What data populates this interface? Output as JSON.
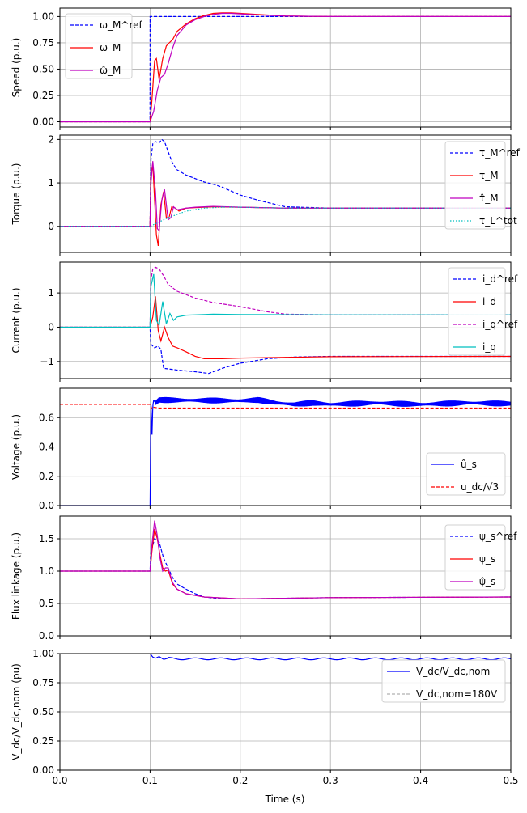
{
  "figure": {
    "xlabel": "Time (s)"
  },
  "chart_data": [
    {
      "type": "line",
      "ylabel": "Speed (p.u.)",
      "xlim": [
        0,
        0.5
      ],
      "ylim": [
        -0.05,
        1.08
      ],
      "yticks": [
        "0.00",
        "0.25",
        "0.50",
        "0.75",
        "1.00"
      ],
      "ytick_values": [
        0,
        0.25,
        0.5,
        0.75,
        1.0
      ],
      "grid": true,
      "legend": "top-left",
      "series": [
        {
          "name": "ω_M^ref",
          "color": "#0000ff",
          "dash": "dashed",
          "x": [
            0,
            0.0999,
            0.1,
            0.5
          ],
          "y": [
            0,
            0,
            1,
            1
          ]
        },
        {
          "name": "ω_M",
          "color": "#ff0000",
          "dash": "solid",
          "x": [
            0,
            0.1,
            0.102,
            0.105,
            0.107,
            0.11,
            0.114,
            0.118,
            0.12,
            0.125,
            0.13,
            0.14,
            0.15,
            0.16,
            0.17,
            0.18,
            0.19,
            0.2,
            0.22,
            0.25,
            0.3,
            0.5
          ],
          "y": [
            0,
            0,
            0.2,
            0.58,
            0.6,
            0.4,
            0.6,
            0.72,
            0.74,
            0.78,
            0.86,
            0.93,
            0.98,
            1.01,
            1.03,
            1.035,
            1.035,
            1.03,
            1.02,
            1.005,
            1.0,
            1.0
          ]
        },
        {
          "name": "ω̂_M",
          "color": "#bf00bf",
          "dash": "solid",
          "x": [
            0,
            0.1,
            0.104,
            0.108,
            0.112,
            0.116,
            0.12,
            0.125,
            0.13,
            0.14,
            0.15,
            0.16,
            0.17,
            0.18,
            0.19,
            0.2,
            0.22,
            0.25,
            0.3,
            0.5
          ],
          "y": [
            0,
            0,
            0.1,
            0.3,
            0.42,
            0.45,
            0.55,
            0.7,
            0.82,
            0.92,
            0.97,
            1.0,
            1.02,
            1.03,
            1.03,
            1.025,
            1.015,
            1.005,
            1.0,
            1.0
          ]
        }
      ]
    },
    {
      "type": "line",
      "ylabel": "Torque (p.u.)",
      "xlim": [
        0,
        0.5
      ],
      "ylim": [
        -0.6,
        2.1
      ],
      "yticks": [
        "0",
        "1",
        "2"
      ],
      "ytick_values": [
        0,
        1,
        2
      ],
      "grid": true,
      "legend": "right",
      "series": [
        {
          "name": "τ_M^ref",
          "color": "#0000ff",
          "dash": "dashed",
          "x": [
            0,
            0.0999,
            0.101,
            0.103,
            0.106,
            0.11,
            0.113,
            0.116,
            0.12,
            0.125,
            0.13,
            0.14,
            0.15,
            0.16,
            0.17,
            0.18,
            0.2,
            0.22,
            0.25,
            0.3,
            0.5
          ],
          "y": [
            0,
            0,
            1.55,
            1.9,
            1.95,
            1.92,
            2.0,
            1.95,
            1.72,
            1.45,
            1.3,
            1.18,
            1.1,
            1.02,
            0.97,
            0.9,
            0.72,
            0.6,
            0.45,
            0.42,
            0.42
          ]
        },
        {
          "name": "τ_M",
          "color": "#ff0000",
          "dash": "solid",
          "x": [
            0,
            0.0999,
            0.101,
            0.103,
            0.105,
            0.107,
            0.109,
            0.112,
            0.115,
            0.118,
            0.121,
            0.124,
            0.128,
            0.132,
            0.14,
            0.15,
            0.17,
            0.2,
            0.25,
            0.3,
            0.5
          ],
          "y": [
            0,
            0,
            1.2,
            1.45,
            0.6,
            -0.2,
            -0.45,
            0.5,
            0.8,
            0.2,
            0.2,
            0.45,
            0.42,
            0.35,
            0.42,
            0.43,
            0.45,
            0.44,
            0.42,
            0.42,
            0.42
          ]
        },
        {
          "name": "τ̂_M",
          "color": "#bf00bf",
          "dash": "solid",
          "x": [
            0,
            0.0999,
            0.101,
            0.103,
            0.106,
            0.108,
            0.11,
            0.113,
            0.116,
            0.12,
            0.123,
            0.126,
            0.13,
            0.14,
            0.15,
            0.17,
            0.2,
            0.25,
            0.3,
            0.5
          ],
          "y": [
            0,
            0,
            1.0,
            1.5,
            0.8,
            -0.05,
            -0.1,
            0.6,
            0.85,
            0.15,
            0.2,
            0.45,
            0.38,
            0.42,
            0.44,
            0.46,
            0.44,
            0.42,
            0.42,
            0.42
          ]
        },
        {
          "name": "τ_L^tot",
          "color": "#00bfbf",
          "dash": "dotted",
          "x": [
            0,
            0.1,
            0.12,
            0.14,
            0.16,
            0.18,
            0.2,
            0.25,
            0.3,
            0.5
          ],
          "y": [
            0,
            0,
            0.2,
            0.35,
            0.42,
            0.44,
            0.44,
            0.42,
            0.42,
            0.42
          ]
        }
      ]
    },
    {
      "type": "line",
      "ylabel": "Current (p.u.)",
      "xlim": [
        0,
        0.5
      ],
      "ylim": [
        -1.5,
        1.9
      ],
      "yticks": [
        "−1",
        "0",
        "1"
      ],
      "ytick_values": [
        -1,
        0,
        1
      ],
      "grid": true,
      "legend": "right",
      "series": [
        {
          "name": "i_d^ref",
          "color": "#0000ff",
          "dash": "dashed",
          "x": [
            0,
            0.0999,
            0.101,
            0.105,
            0.109,
            0.112,
            0.115,
            0.13,
            0.15,
            0.165,
            0.18,
            0.2,
            0.23,
            0.26,
            0.3,
            0.5
          ],
          "y": [
            0,
            0,
            -0.5,
            -0.6,
            -0.55,
            -0.65,
            -1.2,
            -1.25,
            -1.3,
            -1.35,
            -1.2,
            -1.05,
            -0.92,
            -0.87,
            -0.85,
            -0.85
          ]
        },
        {
          "name": "i_d",
          "color": "#ff0000",
          "dash": "solid",
          "x": [
            0,
            0.1,
            0.103,
            0.106,
            0.109,
            0.112,
            0.116,
            0.12,
            0.125,
            0.13,
            0.14,
            0.15,
            0.16,
            0.18,
            0.2,
            0.25,
            0.3,
            0.5
          ],
          "y": [
            0,
            0,
            0.3,
            0.9,
            -0.1,
            -0.4,
            0.0,
            -0.3,
            -0.55,
            -0.6,
            -0.72,
            -0.85,
            -0.92,
            -0.92,
            -0.9,
            -0.88,
            -0.86,
            -0.85
          ]
        },
        {
          "name": "i_q^ref",
          "color": "#bf00bf",
          "dash": "dashed",
          "x": [
            0,
            0.0999,
            0.101,
            0.103,
            0.106,
            0.11,
            0.115,
            0.12,
            0.13,
            0.14,
            0.15,
            0.17,
            0.2,
            0.23,
            0.25,
            0.3,
            0.5
          ],
          "y": [
            0,
            0,
            1.4,
            1.7,
            1.75,
            1.7,
            1.5,
            1.25,
            1.05,
            0.95,
            0.85,
            0.72,
            0.6,
            0.45,
            0.38,
            0.36,
            0.36
          ]
        },
        {
          "name": "i_q",
          "color": "#00bfbf",
          "dash": "solid",
          "x": [
            0,
            0.0999,
            0.101,
            0.104,
            0.107,
            0.11,
            0.114,
            0.118,
            0.122,
            0.126,
            0.13,
            0.14,
            0.15,
            0.17,
            0.2,
            0.3,
            0.5
          ],
          "y": [
            0,
            0,
            1.2,
            1.55,
            0.2,
            0.05,
            0.75,
            0.1,
            0.4,
            0.2,
            0.3,
            0.35,
            0.36,
            0.38,
            0.37,
            0.36,
            0.36
          ]
        }
      ]
    },
    {
      "type": "line",
      "ylabel": "Voltage (p.u.)",
      "xlim": [
        0,
        0.5
      ],
      "ylim": [
        0,
        0.8
      ],
      "yticks": [
        "0.0",
        "0.2",
        "0.4",
        "0.6"
      ],
      "ytick_values": [
        0,
        0.2,
        0.4,
        0.6
      ],
      "grid": true,
      "legend": "bottom-right",
      "series": [
        {
          "name": "û_s",
          "color": "#0000ff",
          "dash": "solid",
          "ripple": 0.02,
          "x": [
            0,
            0.1,
            0.101,
            0.102,
            0.103,
            0.104,
            0.106,
            0.11,
            0.2,
            0.22,
            0.24,
            0.26,
            0.28,
            0.3,
            0.35,
            0.4,
            0.45,
            0.5
          ],
          "y": [
            0,
            0,
            0.7,
            0.45,
            0.68,
            0.72,
            0.7,
            0.72,
            0.715,
            0.72,
            0.7,
            0.69,
            0.7,
            0.69,
            0.7,
            0.69,
            0.7,
            0.695
          ]
        },
        {
          "name": "u_dc/√3",
          "color": "#ff0000",
          "dash": "dashed",
          "x": [
            0,
            0.0999,
            0.1,
            0.102,
            0.104,
            0.11,
            0.2,
            0.5
          ],
          "y": [
            0.69,
            0.69,
            0.69,
            0.66,
            0.67,
            0.665,
            0.665,
            0.665
          ]
        }
      ]
    },
    {
      "type": "line",
      "ylabel": "Flux linkage (p.u.)",
      "xlim": [
        0,
        0.5
      ],
      "ylim": [
        0,
        1.85
      ],
      "yticks": [
        "0.0",
        "0.5",
        "1.0",
        "1.5"
      ],
      "ytick_values": [
        0,
        0.5,
        1.0,
        1.5
      ],
      "grid": true,
      "legend": "top-right",
      "series": [
        {
          "name": "ψ_s^ref",
          "color": "#0000ff",
          "dash": "dashed",
          "x": [
            0,
            0.0999,
            0.101,
            0.105,
            0.11,
            0.115,
            0.12,
            0.125,
            0.13,
            0.14,
            0.15,
            0.16,
            0.18,
            0.2,
            0.25,
            0.3,
            0.5
          ],
          "y": [
            1,
            1,
            1.3,
            1.5,
            1.45,
            1.2,
            1.05,
            0.9,
            0.8,
            0.72,
            0.65,
            0.6,
            0.57,
            0.57,
            0.58,
            0.59,
            0.6
          ]
        },
        {
          "name": "ψ_s",
          "color": "#ff0000",
          "dash": "solid",
          "x": [
            0,
            0.1,
            0.102,
            0.105,
            0.108,
            0.111,
            0.114,
            0.117,
            0.12,
            0.125,
            0.13,
            0.14,
            0.16,
            0.2,
            0.25,
            0.3,
            0.5
          ],
          "y": [
            1,
            1,
            1.3,
            1.65,
            1.5,
            1.25,
            1.05,
            1.0,
            1.02,
            0.8,
            0.72,
            0.65,
            0.6,
            0.57,
            0.58,
            0.59,
            0.6
          ]
        },
        {
          "name": "ψ̂_s",
          "color": "#bf00bf",
          "dash": "solid",
          "x": [
            0,
            0.1,
            0.102,
            0.105,
            0.108,
            0.111,
            0.114,
            0.117,
            0.12,
            0.125,
            0.13,
            0.14,
            0.16,
            0.2,
            0.25,
            0.3,
            0.5
          ],
          "y": [
            1,
            1,
            1.4,
            1.78,
            1.55,
            1.2,
            1.0,
            1.05,
            1.05,
            0.82,
            0.72,
            0.65,
            0.6,
            0.57,
            0.58,
            0.59,
            0.6
          ]
        }
      ]
    },
    {
      "type": "line",
      "ylabel": "V_dc/V_dc,nom (pu)",
      "xlim": [
        0,
        0.5
      ],
      "ylim": [
        0,
        1.0
      ],
      "yticks": [
        "0.00",
        "0.25",
        "0.50",
        "0.75",
        "1.00"
      ],
      "ytick_values": [
        0,
        0.25,
        0.5,
        0.75,
        1.0
      ],
      "xticks": [
        "0.0",
        "0.1",
        "0.2",
        "0.3",
        "0.4",
        "0.5"
      ],
      "xtick_values": [
        0,
        0.1,
        0.2,
        0.3,
        0.4,
        0.5
      ],
      "grid": true,
      "legend": "top-right",
      "series": [
        {
          "name": "V_dc/V_dc,nom",
          "color": "#0000ff",
          "dash": "solid",
          "wave": 0.008,
          "x": [
            0.1,
            0.103,
            0.106,
            0.11,
            0.115,
            0.12,
            0.13,
            0.15,
            0.2,
            0.3,
            0.4,
            0.5
          ],
          "y": [
            1.0,
            0.97,
            0.96,
            0.975,
            0.95,
            0.96,
            0.955,
            0.955,
            0.955,
            0.955,
            0.955,
            0.955
          ]
        },
        {
          "name": "V_dc,nom=180V",
          "color": "#b0b0b0",
          "dash": "dashed",
          "x": [
            0,
            0.5
          ],
          "y": [
            1.0,
            1.0
          ]
        }
      ]
    }
  ]
}
